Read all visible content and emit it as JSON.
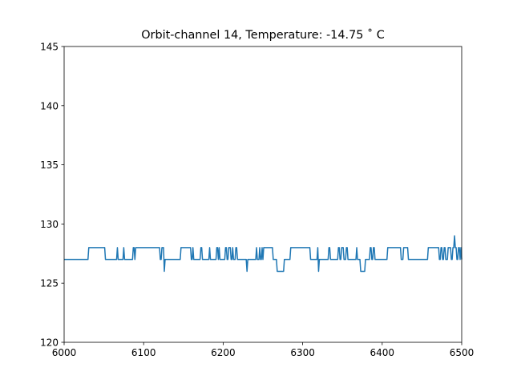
{
  "chart_data": {
    "type": "line",
    "title": "Orbit-channel 14, Temperature: -14.75 ˚ C",
    "xlim": [
      6000,
      6500
    ],
    "xticks": [
      6000,
      6100,
      6200,
      6300,
      6400,
      6500
    ],
    "ylim": [
      120,
      145
    ],
    "yticks": [
      120,
      125,
      130,
      135,
      140,
      145
    ],
    "series": [
      {
        "color": "#1f77b4",
        "x": [
          6000,
          6030,
          6031,
          6051,
          6052,
          6066,
          6067,
          6068,
          6074,
          6075,
          6076,
          6086,
          6087,
          6088,
          6089,
          6090,
          6120,
          6121,
          6122,
          6123,
          6125,
          6126,
          6127,
          6146,
          6147,
          6159,
          6160,
          6161,
          6162,
          6163,
          6171,
          6172,
          6173,
          6174,
          6182,
          6183,
          6184,
          6191,
          6192,
          6193,
          6194,
          6195,
          6196,
          6202,
          6203,
          6204,
          6205,
          6206,
          6207,
          6209,
          6210,
          6211,
          6212,
          6213,
          6215,
          6216,
          6217,
          6218,
          6229,
          6230,
          6231,
          6241,
          6242,
          6243,
          6245,
          6246,
          6247,
          6248,
          6249,
          6250,
          6251,
          6262,
          6263,
          6267,
          6268,
          6276,
          6277,
          6284,
          6285,
          6309,
          6310,
          6318,
          6319,
          6320,
          6321,
          6332,
          6333,
          6334,
          6335,
          6344,
          6345,
          6346,
          6347,
          6348,
          6349,
          6351,
          6352,
          6354,
          6355,
          6356,
          6357,
          6367,
          6368,
          6369,
          6372,
          6373,
          6378,
          6379,
          6384,
          6385,
          6386,
          6387,
          6388,
          6389,
          6390,
          6391,
          6406,
          6407,
          6423,
          6424,
          6426,
          6427,
          6432,
          6433,
          6457,
          6458,
          6471,
          6472,
          6473,
          6474,
          6475,
          6476,
          6477,
          6478,
          6479,
          6480,
          6482,
          6483,
          6486,
          6487,
          6488,
          6489,
          6490,
          6491,
          6492,
          6493,
          6494,
          6495,
          6496,
          6497,
          6498,
          6499,
          6500
        ],
        "values": [
          127,
          127,
          128,
          128,
          127,
          127,
          128,
          127,
          127,
          128,
          127,
          127,
          128,
          128,
          127,
          128,
          128,
          127,
          127,
          128,
          128,
          126,
          127,
          127,
          128,
          128,
          127,
          127,
          128,
          127,
          127,
          128,
          128,
          127,
          127,
          128,
          127,
          127,
          128,
          128,
          127,
          128,
          127,
          127,
          128,
          128,
          127,
          127,
          128,
          128,
          127,
          127,
          128,
          127,
          127,
          128,
          128,
          127,
          127,
          126,
          127,
          127,
          128,
          127,
          127,
          128,
          127,
          127,
          128,
          127,
          128,
          128,
          127,
          127,
          126,
          126,
          127,
          127,
          128,
          128,
          127,
          127,
          128,
          126,
          127,
          127,
          128,
          128,
          127,
          127,
          128,
          128,
          127,
          127,
          128,
          128,
          127,
          127,
          128,
          128,
          127,
          127,
          128,
          127,
          127,
          126,
          126,
          127,
          127,
          128,
          128,
          127,
          127,
          128,
          128,
          127,
          127,
          128,
          128,
          127,
          127,
          128,
          128,
          127,
          127,
          128,
          128,
          127,
          127,
          128,
          128,
          127,
          127,
          128,
          128,
          127,
          127,
          128,
          128,
          127,
          127,
          128,
          128,
          129,
          128,
          128,
          127,
          127,
          128,
          128,
          127,
          128,
          127
        ]
      }
    ]
  }
}
